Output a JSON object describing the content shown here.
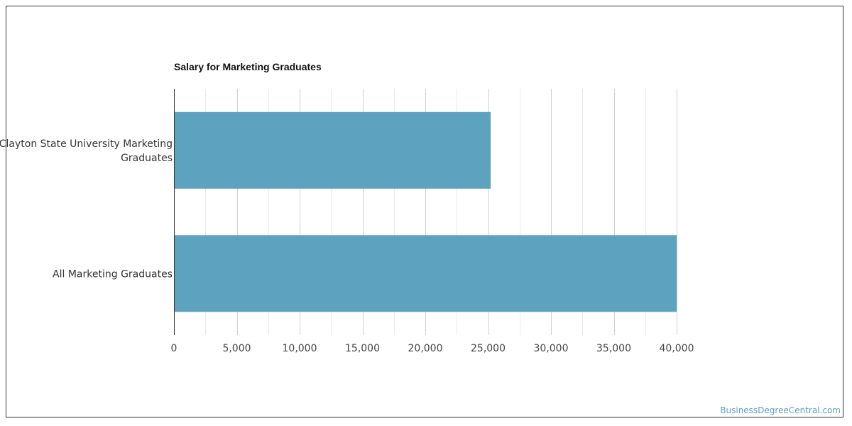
{
  "chart_data": {
    "type": "bar",
    "orientation": "horizontal",
    "title": "Salary for Marketing Graduates",
    "categories": [
      "Clayton State University Marketing Graduates",
      "All Marketing Graduates"
    ],
    "values": [
      25200,
      40000
    ],
    "xlim": [
      0,
      40000
    ],
    "xticks": [
      0,
      5000,
      10000,
      15000,
      20000,
      25000,
      30000,
      35000,
      40000
    ],
    "xtick_labels": [
      "0",
      "5,000",
      "10,000",
      "15,000",
      "20,000",
      "25,000",
      "30,000",
      "35,000",
      "40,000"
    ],
    "grid": true,
    "bar_color": "#5da2bf"
  },
  "watermark": "BusinessDegreeCentral.com"
}
